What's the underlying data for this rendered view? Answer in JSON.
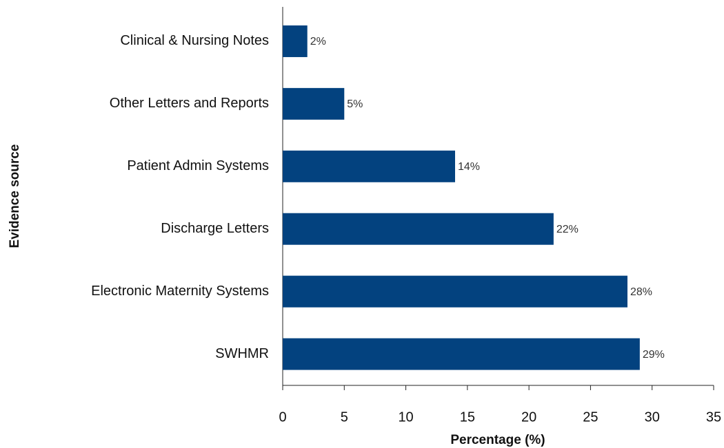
{
  "chart_data": {
    "type": "barh",
    "categories": [
      "Clinical & Nursing Notes",
      "Other Letters and Reports",
      "Patient Admin Systems",
      "Discharge Letters",
      "Electronic Maternity Systems",
      "SWHMR"
    ],
    "values": [
      2,
      5,
      14,
      22,
      28,
      29
    ],
    "value_labels": [
      "2%",
      "5%",
      "14%",
      "22%",
      "28%",
      "29%"
    ],
    "color": "#03427f",
    "xlim": [
      0,
      35
    ],
    "xticks": [
      0,
      5,
      10,
      15,
      20,
      25,
      30,
      35
    ],
    "xlabel": "Percentage (%)",
    "ylabel": "Evidence source",
    "grid": false
  }
}
